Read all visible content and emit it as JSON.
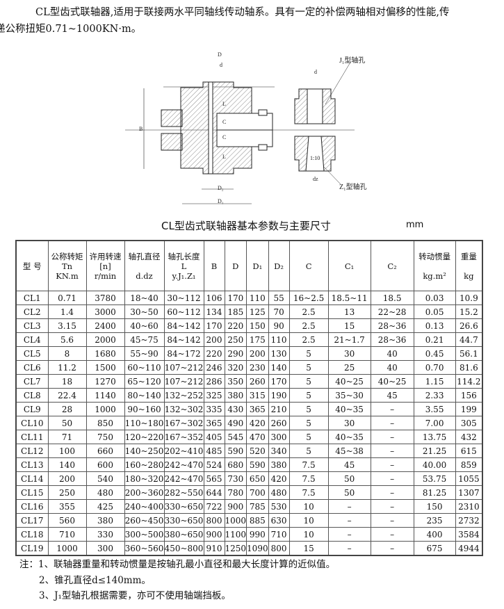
{
  "intro": {
    "line1": "CL型齿式联轴器,适用于联接两水平同轴线传动轴系。具有一定的补偿两轴相对偏移的性能,传",
    "line2": "递公称扭矩0.71~1000KN·m。"
  },
  "drawing": {
    "labels": {
      "D": "D",
      "d": "d",
      "B": "B",
      "L": "L",
      "C": "C",
      "D2": "D₂",
      "D1": "D₁",
      "dz": "dz",
      "taper": "1:10",
      "j1": "J₁型轴孔",
      "z1": "Z₁型轴孔"
    }
  },
  "table_title": "CL型齿式联轴器基本参数与主要尺寸",
  "unit": "mm",
  "table": {
    "headers": [
      {
        "l1": "型 号",
        "l2": "",
        "l3": ""
      },
      {
        "l1": "公称转矩",
        "l2": "Tn",
        "l3": "KN.m"
      },
      {
        "l1": "许用转速",
        "l2": "[n]",
        "l3": "r/min"
      },
      {
        "l1": "轴孔直径",
        "l2": "",
        "l3": "d.dz"
      },
      {
        "l1": "轴孔长度",
        "l2": "L",
        "l3": "y.J₁.Z₁"
      },
      {
        "l1": "B",
        "l2": "",
        "l3": ""
      },
      {
        "l1": "D",
        "l2": "",
        "l3": ""
      },
      {
        "l1": "D₁",
        "l2": "",
        "l3": ""
      },
      {
        "l1": "D₂",
        "l2": "",
        "l3": ""
      },
      {
        "l1": "C",
        "l2": "",
        "l3": ""
      },
      {
        "l1": "C₁",
        "l2": "",
        "l3": ""
      },
      {
        "l1": "C₂",
        "l2": "",
        "l3": ""
      },
      {
        "l1": "转动惯量",
        "l2": "",
        "l3": "kg.m²"
      },
      {
        "l1": "重量",
        "l2": "",
        "l3": "kg"
      }
    ],
    "rows": [
      [
        "CL1",
        "0.71",
        "3780",
        "18~40",
        "30~112",
        "106",
        "170",
        "110",
        "55",
        "16~2.5",
        "18.5~11",
        "18.5",
        "0.03",
        "10.9"
      ],
      [
        "CL2",
        "1.4",
        "3000",
        "30~50",
        "60~112",
        "134",
        "185",
        "125",
        "70",
        "2.5",
        "13",
        "22~28",
        "0.05",
        "15.2"
      ],
      [
        "CL3",
        "3.15",
        "2400",
        "40~60",
        "84~142",
        "170",
        "220",
        "150",
        "90",
        "2.5",
        "15",
        "28~36",
        "0.13",
        "26.6"
      ],
      [
        "CL4",
        "5.6",
        "2000",
        "45~75",
        "84~142",
        "200",
        "250",
        "175",
        "110",
        "2.5",
        "21~1.7",
        "28~36",
        "0.21",
        "44.7"
      ],
      [
        "CL5",
        "8",
        "1680",
        "55~90",
        "84~172",
        "220",
        "290",
        "200",
        "130",
        "5",
        "30",
        "40",
        "0.45",
        "56.1"
      ],
      [
        "CL6",
        "11.2",
        "1500",
        "60~110",
        "107~212",
        "246",
        "320",
        "230",
        "140",
        "5",
        "25",
        "40",
        "0.70",
        "81.6"
      ],
      [
        "CL7",
        "18",
        "1270",
        "65~120",
        "107~212",
        "286",
        "350",
        "260",
        "170",
        "5",
        "40~25",
        "40~25",
        "1.15",
        "114.2"
      ],
      [
        "CL8",
        "22.4",
        "1140",
        "80~140",
        "132~252",
        "325",
        "380",
        "315",
        "190",
        "5",
        "35~30",
        "45",
        "2.33",
        "156"
      ],
      [
        "CL9",
        "28",
        "1000",
        "90~160",
        "132~302",
        "335",
        "430",
        "365",
        "210",
        "5",
        "40~35",
        "–",
        "3.55",
        "199"
      ],
      [
        "CL10",
        "50",
        "850",
        "110~180",
        "167~302",
        "365",
        "490",
        "420",
        "260",
        "5",
        "30",
        "–",
        "7.00",
        "305"
      ],
      [
        "CL11",
        "71",
        "750",
        "120~220",
        "167~352",
        "405",
        "545",
        "470",
        "300",
        "5",
        "40~35",
        "–",
        "13.75",
        "432"
      ],
      [
        "CL12",
        "100",
        "660",
        "140~250",
        "202~410",
        "485",
        "590",
        "520",
        "340",
        "5",
        "45~38",
        "–",
        "21.25",
        "615"
      ],
      [
        "CL13",
        "140",
        "600",
        "160~280",
        "242~470",
        "524",
        "680",
        "590",
        "380",
        "7.5",
        "45",
        "–",
        "40.00",
        "859"
      ],
      [
        "CL14",
        "200",
        "540",
        "180~320",
        "242~470",
        "565",
        "730",
        "650",
        "420",
        "7.5",
        "50",
        "–",
        "53.75",
        "1055"
      ],
      [
        "CL15",
        "250",
        "480",
        "200~360",
        "282~550",
        "644",
        "780",
        "700",
        "480",
        "7.5",
        "50",
        "–",
        "81.25",
        "1307"
      ],
      [
        "CL16",
        "355",
        "425",
        "240~400",
        "330~650",
        "722",
        "900",
        "785",
        "530",
        "10",
        "–",
        "–",
        "150",
        "2310"
      ],
      [
        "CL17",
        "560",
        "380",
        "260~450",
        "330~650",
        "800",
        "1000",
        "885",
        "630",
        "10",
        "–",
        "–",
        "235",
        "2732"
      ],
      [
        "CL18",
        "710",
        "330",
        "300~500",
        "380~650",
        "900",
        "1100",
        "990",
        "710",
        "10",
        "–",
        "–",
        "400",
        "3584"
      ],
      [
        "CL19",
        "1000",
        "300",
        "360~560",
        "450~800",
        "910",
        "1250",
        "1090",
        "800",
        "15",
        "–",
        "–",
        "675",
        "4944"
      ]
    ]
  },
  "notes": [
    "注：1、联轴器重量和转动惯量是按轴孔最小直径和最大长度计算的近似值。",
    "2、锥孔直径d≤140mm。",
    "3、J₁型轴孔根据需要，亦可不使用轴端挡板。"
  ]
}
